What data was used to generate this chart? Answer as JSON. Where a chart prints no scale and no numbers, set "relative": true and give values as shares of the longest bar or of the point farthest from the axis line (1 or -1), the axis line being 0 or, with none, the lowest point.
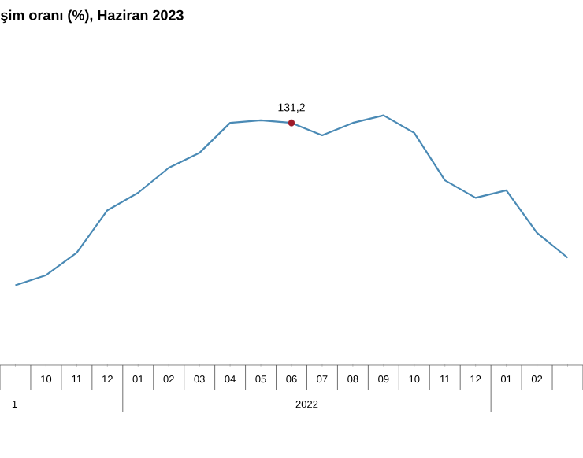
{
  "chart_data": {
    "type": "line",
    "title": "şim oranı (%), Haziran 2023",
    "categories": [
      null,
      "10",
      "11",
      "12",
      "01",
      "02",
      "03",
      "04",
      "05",
      "06",
      "07",
      "08",
      "09",
      "10",
      "11",
      "12",
      "01",
      "02",
      null
    ],
    "relative": true,
    "series": [
      {
        "color": "#4a8ab5",
        "values": [
          0.32,
          0.36,
          0.45,
          0.62,
          0.69,
          0.79,
          0.85,
          0.97,
          0.98,
          0.97,
          0.92,
          0.97,
          1,
          0.93,
          0.74,
          0.67,
          0.7,
          0.53,
          0.43
        ]
      },
      {
        "type": "scatter",
        "color": "#9e1b2a",
        "x": [
          "06"
        ],
        "values": [
          0.97
        ]
      }
    ],
    "annotations": [
      "1",
      "2022",
      "131,2"
    ]
  }
}
